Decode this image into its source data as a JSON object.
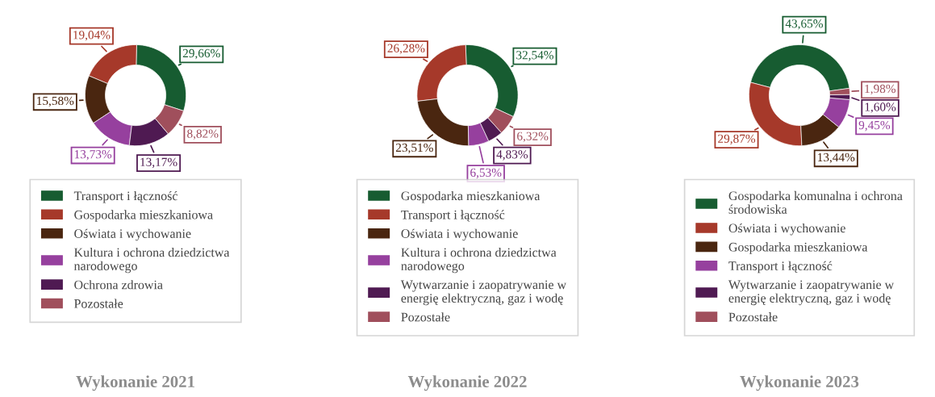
{
  "chart_data": [
    {
      "type": "donut",
      "title": "Wykonanie 2021",
      "categories": [
        "Transport i łączność",
        "Gospodarka mieszkaniowa",
        "Oświata i wychowanie",
        "Kultura i ochrona dziedzictwa narodowego",
        "Ochrona zdrowia",
        "Pozostałe"
      ],
      "values": [
        29.66,
        19.04,
        15.58,
        13.73,
        13.17,
        8.82
      ],
      "value_labels": [
        "29,66%",
        "19,04%",
        "15,58%",
        "13,73%",
        "13,17%",
        "8,82%"
      ],
      "colors": [
        "#175c31",
        "#a6392a",
        "#4a2610",
        "#96409e",
        "#4f1a52",
        "#a04f5c"
      ],
      "legend": "bottom"
    },
    {
      "type": "donut",
      "title": "Wykonanie 2022",
      "categories": [
        "Gospodarka mieszkaniowa",
        "Transport i łączność",
        "Oświata i wychowanie",
        "Kultura i ochrona dziedzictwa narodowego",
        "Wytwarzanie i zaopatrywanie w energię elektryczną, gaz i wodę",
        "Pozostałe"
      ],
      "values": [
        32.54,
        26.28,
        23.51,
        6.53,
        4.83,
        6.32
      ],
      "value_labels": [
        "32,54%",
        "26,28%",
        "23,51%",
        "6,53%",
        "4,83%",
        "6,32%"
      ],
      "colors": [
        "#175c31",
        "#a6392a",
        "#4a2610",
        "#96409e",
        "#4f1a52",
        "#a04f5c"
      ],
      "legend": "bottom"
    },
    {
      "type": "donut",
      "title": "Wykonanie 2023",
      "categories": [
        "Gospodarka komunalna i ochrona środowiska",
        "Oświata i wychowanie",
        "Gospodarka mieszkaniowa",
        "Transport i łączność",
        "Wytwarzanie i zaopatrywanie w energię elektryczną, gaz i wodę",
        "Pozostałe"
      ],
      "values": [
        43.65,
        29.87,
        13.44,
        9.45,
        1.6,
        1.98
      ],
      "value_labels": [
        "43,65%",
        "29,87%",
        "13,44%",
        "9,45%",
        "1,60%",
        "1,98%"
      ],
      "colors": [
        "#175c31",
        "#a6392a",
        "#4a2610",
        "#96409e",
        "#4f1a52",
        "#a04f5c"
      ],
      "legend": "bottom"
    }
  ]
}
